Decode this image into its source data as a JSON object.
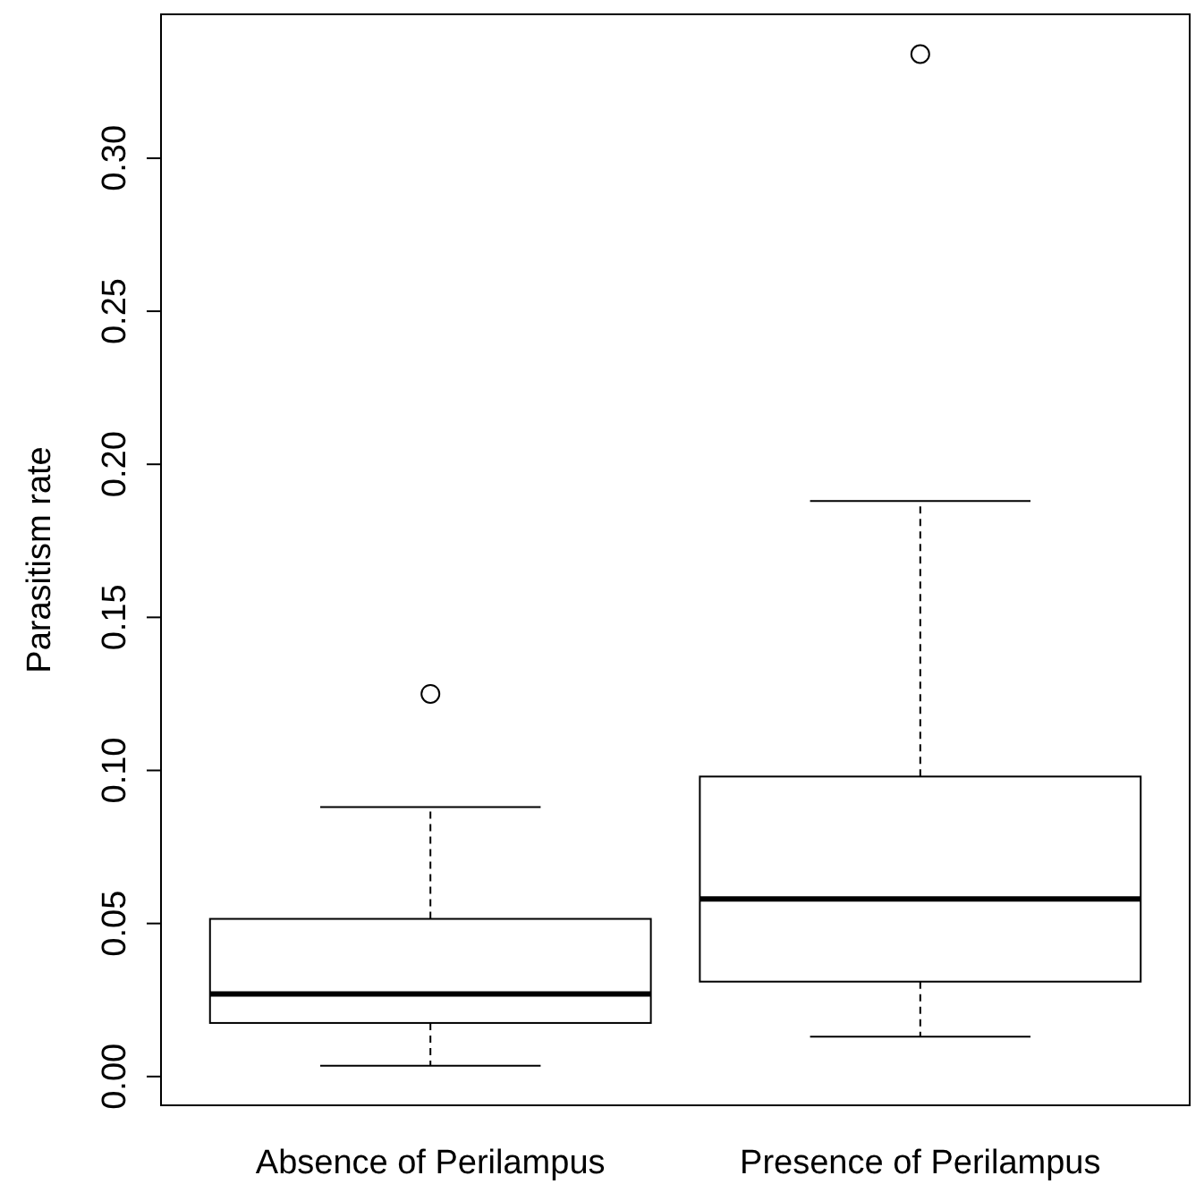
{
  "chart_data": {
    "type": "box",
    "ylabel": "Parasitism rate",
    "categories": [
      "Absence of Perilampus",
      "Presence of Perilampus"
    ],
    "boxes": [
      {
        "low": 0.0035,
        "q1": 0.0175,
        "median": 0.027,
        "q3": 0.0515,
        "high": 0.088,
        "outliers": [
          0.125
        ]
      },
      {
        "low": 0.013,
        "q1": 0.031,
        "median": 0.058,
        "q3": 0.098,
        "high": 0.188,
        "outliers": [
          0.334
        ]
      }
    ],
    "ylim": [
      -0.0094,
      0.347
    ],
    "yticks": [
      {
        "value": 0,
        "label": "0.00"
      },
      {
        "value": 0.05,
        "label": "0.05"
      },
      {
        "value": 0.1,
        "label": "0.10"
      },
      {
        "value": 0.15,
        "label": "0.15"
      },
      {
        "value": 0.2,
        "label": "0.20"
      },
      {
        "value": 0.25,
        "label": "0.25"
      },
      {
        "value": 0.3,
        "label": "0.30"
      }
    ],
    "grid": false
  }
}
